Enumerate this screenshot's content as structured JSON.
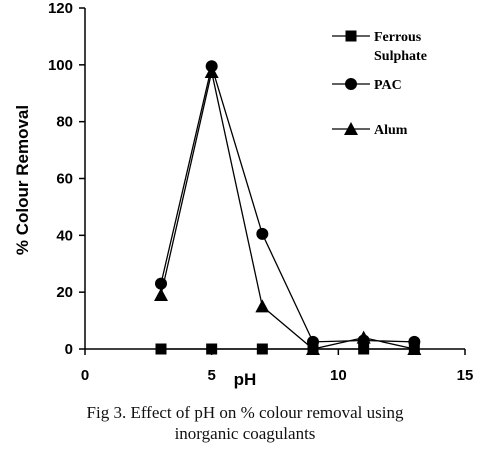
{
  "chart_data": {
    "type": "line",
    "xlabel": "pH",
    "ylabel": "% Colour Removal",
    "xlim": [
      0,
      15
    ],
    "ylim": [
      0,
      120
    ],
    "xticks": [
      0,
      5,
      10,
      15
    ],
    "yticks": [
      0,
      20,
      40,
      60,
      80,
      100,
      120
    ],
    "grid": false,
    "legend_position": "top-right",
    "series": [
      {
        "name": "Ferrous Sulphate",
        "name_lines": [
          "Ferrous",
          "Sulphate"
        ],
        "marker": "square",
        "x": [
          3,
          5,
          7,
          9,
          11,
          13
        ],
        "y": [
          0,
          0,
          0,
          0,
          0,
          0
        ]
      },
      {
        "name": "PAC",
        "name_lines": [
          "PAC"
        ],
        "marker": "circle",
        "x": [
          3,
          5,
          7,
          9,
          11,
          13
        ],
        "y": [
          23,
          99.5,
          40.5,
          2.5,
          3,
          2.5
        ]
      },
      {
        "name": "Alum",
        "name_lines": [
          "Alum"
        ],
        "marker": "triangle",
        "x": [
          3,
          5,
          7,
          9,
          11,
          13
        ],
        "y": [
          19,
          97.5,
          15,
          0,
          4,
          0
        ]
      }
    ]
  },
  "caption": {
    "line1": "Fig 3. Effect of pH on % colour removal using",
    "line2": "inorganic coagulants"
  }
}
